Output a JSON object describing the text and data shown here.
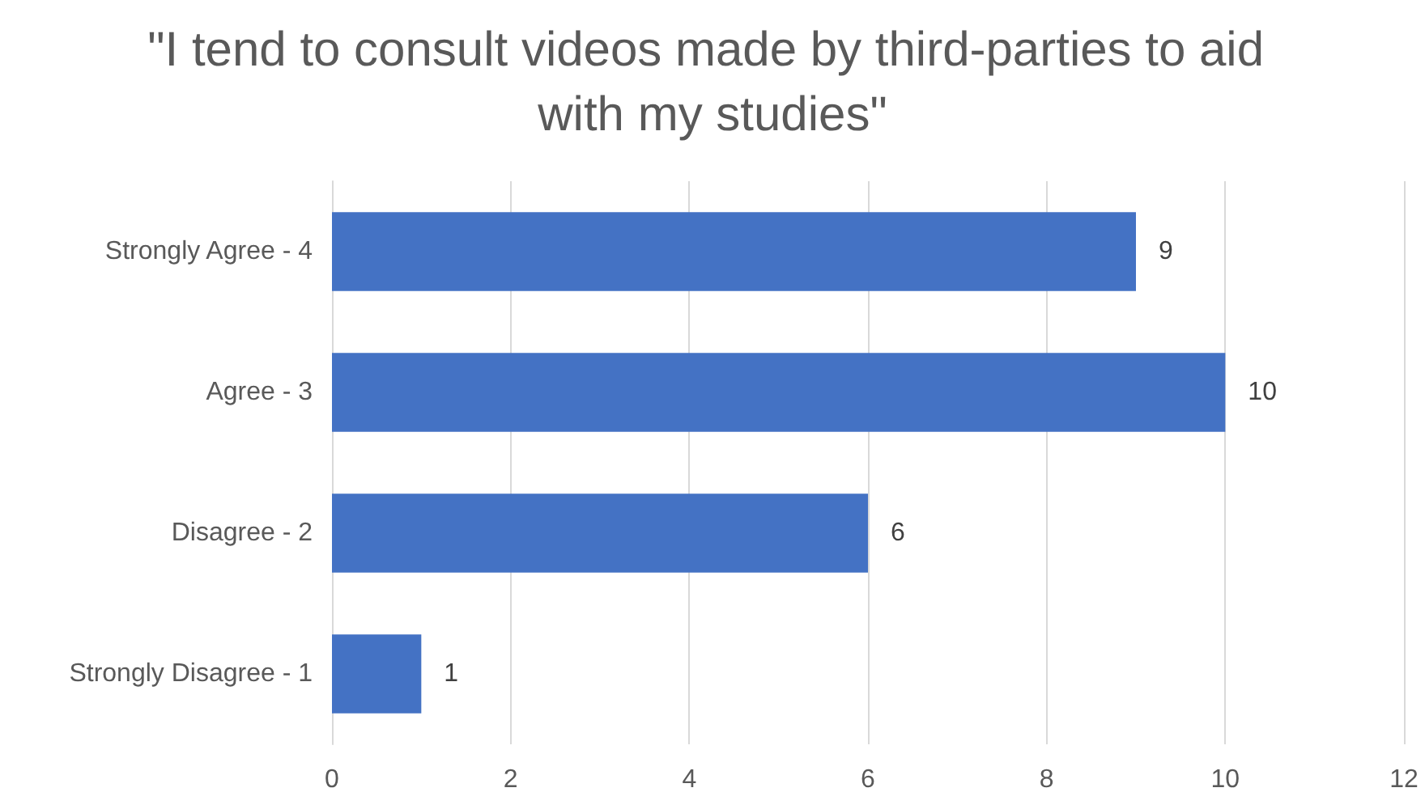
{
  "chart_data": {
    "type": "bar",
    "orientation": "horizontal",
    "title": "\"I tend to consult videos made by third-parties to aid with my studies\"",
    "categories": [
      "Strongly Agree - 4",
      "Agree - 3",
      "Disagree - 2",
      "Strongly Disagree - 1"
    ],
    "values": [
      9,
      10,
      6,
      1
    ],
    "color": "#4472c4",
    "xlim": [
      0,
      12
    ],
    "xticks": [
      0,
      2,
      4,
      6,
      8,
      10,
      12
    ],
    "grid": "x",
    "data_labels": true
  }
}
